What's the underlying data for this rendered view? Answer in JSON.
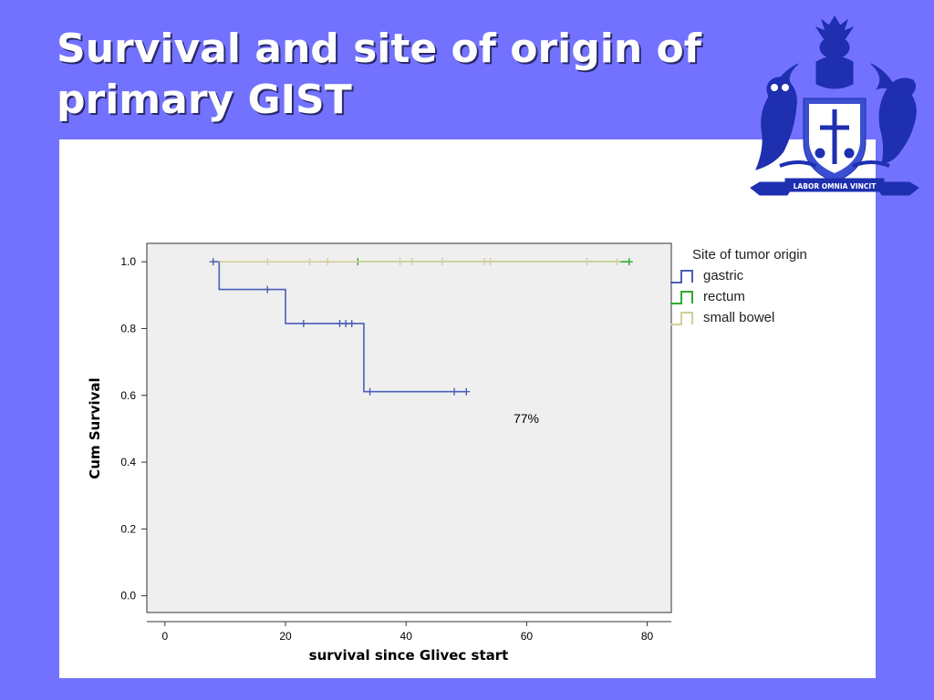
{
  "title": "Survival and site of origin of primary GIST",
  "crest": {
    "motto": "LABOR OMNIA VINCIT"
  },
  "chart_data": {
    "type": "line",
    "subtype": "kaplan-meier",
    "xlabel": "survival since Glivec start",
    "ylabel": "Cum Survival",
    "xlim": [
      -3,
      84
    ],
    "ylim": [
      -0.05,
      1.055
    ],
    "x_ticks": [
      0,
      20,
      40,
      60,
      80
    ],
    "y_ticks": [
      "0.0",
      "0.2",
      "0.4",
      "0.6",
      "0.8",
      "1.0"
    ],
    "legend_title": "Site of tumor origin",
    "legend_position": "right",
    "annotation": "77%",
    "grid": false,
    "background": "#efefef",
    "series": [
      {
        "name": "gastric",
        "color": "#4a5fb8",
        "steps": [
          [
            8,
            1.0
          ],
          [
            9,
            0.917
          ],
          [
            20,
            0.815
          ],
          [
            33,
            0.611
          ],
          [
            50,
            0.611
          ]
        ],
        "censored": [
          [
            8,
            1.0
          ],
          [
            17,
            0.917
          ],
          [
            23,
            0.815
          ],
          [
            29,
            0.815
          ],
          [
            30,
            0.815
          ],
          [
            31,
            0.815
          ],
          [
            34,
            0.611
          ],
          [
            48,
            0.611
          ],
          [
            50,
            0.611
          ]
        ]
      },
      {
        "name": "rectum",
        "color": "#2faa2f",
        "steps": [
          [
            32,
            1.0
          ],
          [
            77,
            1.0
          ]
        ],
        "censored": [
          [
            32,
            1.0
          ],
          [
            77,
            1.0
          ]
        ]
      },
      {
        "name": "small bowel",
        "color": "#d2cf9a",
        "steps": [
          [
            9,
            1.0
          ],
          [
            75,
            1.0
          ]
        ],
        "censored": [
          [
            17,
            1.0
          ],
          [
            24,
            1.0
          ],
          [
            27,
            1.0
          ],
          [
            39,
            1.0
          ],
          [
            41,
            1.0
          ],
          [
            46,
            1.0
          ],
          [
            53,
            1.0
          ],
          [
            54,
            1.0
          ],
          [
            70,
            1.0
          ],
          [
            75,
            1.0
          ]
        ]
      }
    ]
  }
}
